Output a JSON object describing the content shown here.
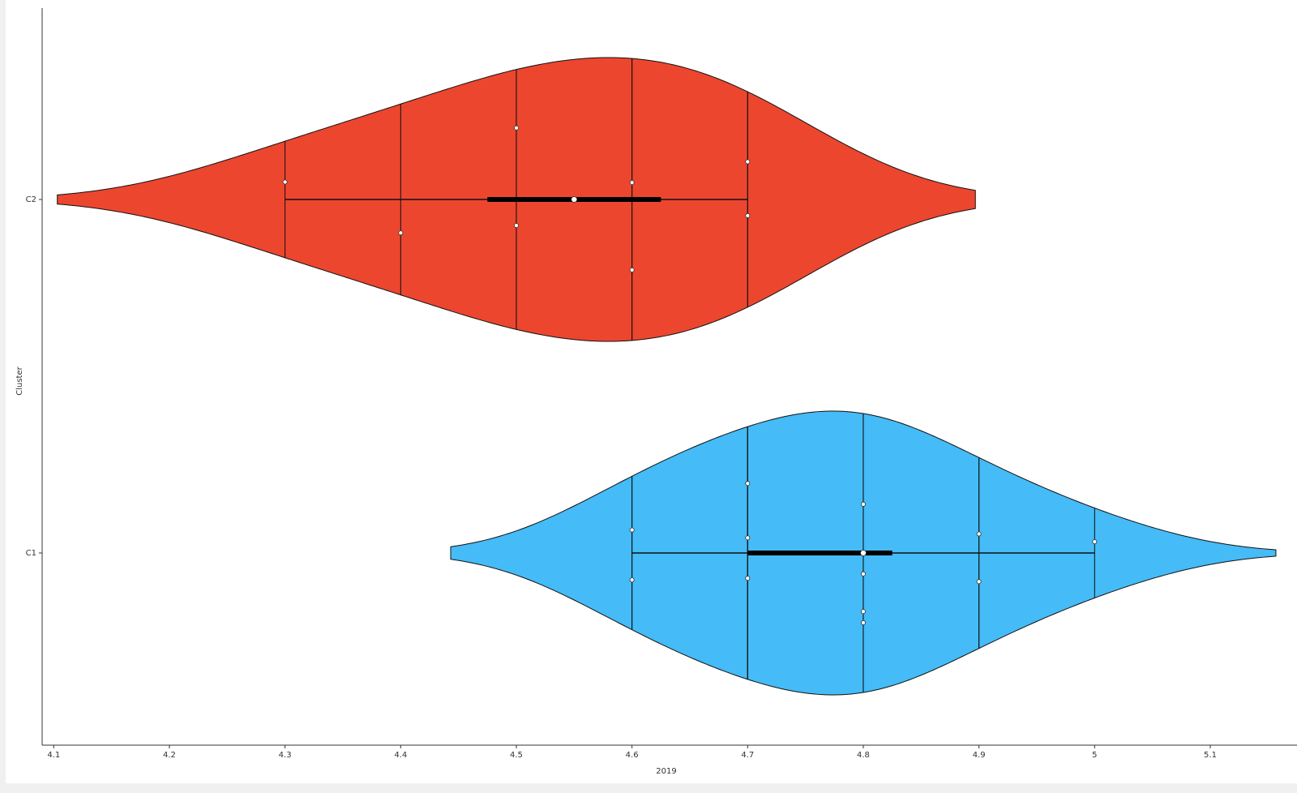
{
  "chart_data": {
    "type": "violin",
    "orientation": "horizontal",
    "x_label": "2019",
    "y_label": "Cluster",
    "categories": [
      "C2",
      "C1"
    ],
    "series": [
      {
        "name": "C2",
        "color": "#ec462f",
        "values": [
          4.3,
          4.4,
          4.5,
          4.5,
          4.6,
          4.6,
          4.7,
          4.7
        ],
        "q1": 4.475,
        "median": 4.55,
        "q3": 4.625
      },
      {
        "name": "C1",
        "color": "#45bbf7",
        "values": [
          4.6,
          4.6,
          4.7,
          4.7,
          4.7,
          4.8,
          4.8,
          4.8,
          4.8,
          4.9,
          4.9,
          5
        ],
        "q1": 4.7,
        "median": 4.8,
        "q3": 4.825
      }
    ],
    "xlim": [
      4.09,
      5.175
    ],
    "xticks": [
      4.1,
      4.2,
      4.3,
      4.4,
      4.5,
      4.6,
      4.7,
      4.8,
      4.9,
      5,
      5.1
    ],
    "grid": false
  }
}
